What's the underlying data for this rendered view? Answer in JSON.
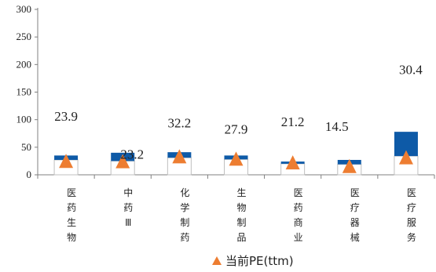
{
  "chart_data": {
    "type": "bar",
    "categories": [
      "医药生物",
      "中药Ⅲ",
      "化学制药",
      "生物制品",
      "医药商业",
      "医疗器械",
      "医疗服务"
    ],
    "series": [
      {
        "name": "当前PE(ttm)",
        "marker": "triangle",
        "color": "#ED7D31",
        "values": [
          23.9,
          23.2,
          32.2,
          27.9,
          21.2,
          14.5,
          30.4
        ],
        "labels": [
          "23.9",
          "23.2",
          "32.2",
          "27.9",
          "21.2",
          "14.5",
          "30.4"
        ]
      }
    ],
    "bands": {
      "colors": {
        "upper": "#0E5AA7",
        "lower": "#FFFFFF",
        "lower_border": "#BFBFBF"
      },
      "bottom": [
        20,
        17,
        25,
        22,
        17,
        13,
        31
      ],
      "middle": [
        27,
        25,
        31,
        28,
        20,
        19,
        34
      ],
      "top": [
        35,
        40,
        41,
        35,
        24,
        27,
        78
      ]
    },
    "y_ticks": [
      "0",
      "50",
      "100",
      "150",
      "200",
      "250",
      "300"
    ],
    "ylim": [
      0,
      300
    ],
    "legend": {
      "label": "当前PE(ttm)",
      "position": "bottom"
    }
  }
}
